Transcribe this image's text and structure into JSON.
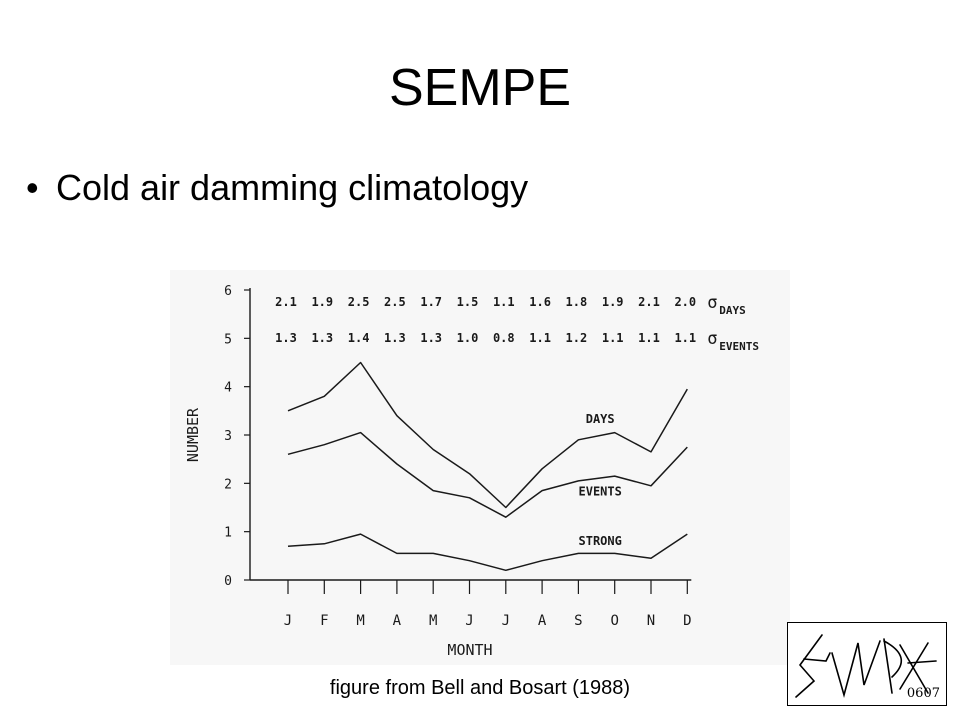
{
  "slide": {
    "title": "SEMPE",
    "bullet_symbol": "•",
    "bullet": "Cold air damming climatology",
    "caption": "figure from Bell and Bosart (1988)"
  },
  "logo": {
    "code": "0607"
  },
  "chart_data": {
    "type": "line",
    "title": "",
    "xlabel": "MONTH",
    "ylabel": "NUMBER",
    "categories": [
      "J",
      "F",
      "M",
      "A",
      "M",
      "J",
      "J",
      "A",
      "S",
      "O",
      "N",
      "D"
    ],
    "ylim": [
      0,
      6
    ],
    "yticks": [
      "0",
      "1",
      "2",
      "3",
      "4",
      "5",
      "6"
    ],
    "series": [
      {
        "name": "DAYS",
        "values": [
          3.5,
          3.8,
          4.5,
          3.4,
          2.7,
          2.2,
          1.5,
          2.3,
          2.9,
          3.05,
          2.65,
          3.95
        ]
      },
      {
        "name": "EVENTS",
        "values": [
          2.6,
          2.8,
          3.05,
          2.4,
          1.85,
          1.7,
          1.3,
          1.85,
          2.05,
          2.15,
          1.95,
          2.75
        ]
      },
      {
        "name": "STRONG",
        "values": [
          0.7,
          0.75,
          0.95,
          0.55,
          0.55,
          0.4,
          0.2,
          0.4,
          0.55,
          0.55,
          0.45,
          0.95
        ]
      }
    ],
    "sigma_rows": [
      {
        "label": "σ",
        "sub": "DAYS",
        "values": [
          "2.1",
          "1.9",
          "2.5",
          "2.5",
          "1.7",
          "1.5",
          "1.1",
          "1.6",
          "1.8",
          "1.9",
          "2.1",
          "2.0"
        ]
      },
      {
        "label": "σ",
        "sub": "EVENTS",
        "values": [
          "1.3",
          "1.3",
          "1.4",
          "1.3",
          "1.3",
          "1.0",
          "0.8",
          "1.1",
          "1.2",
          "1.1",
          "1.1",
          "1.1"
        ]
      }
    ],
    "grid": false,
    "line_color": "#1a1a1a"
  }
}
